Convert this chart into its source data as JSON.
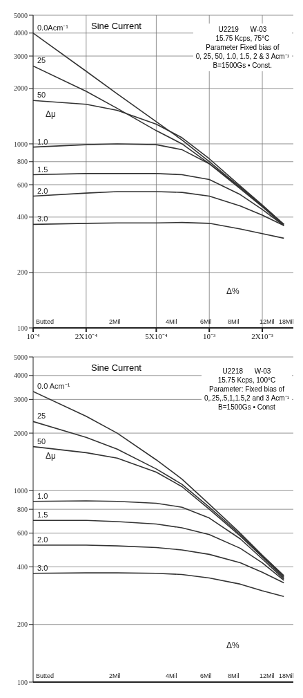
{
  "chart_data": [
    {
      "type": "line",
      "title": "Sine Current",
      "x": [
        0.0001,
        0.0002,
        0.0003,
        0.0005,
        0.0007,
        0.001,
        0.0015,
        0.002,
        0.00265
      ],
      "series": [
        {
          "name": "0.0Acm⁻¹",
          "color": "#333333",
          "values": [
            4000,
            2480,
            1870,
            1320,
            1050,
            800,
            580,
            460,
            365
          ]
        },
        {
          "name": "25",
          "color": "#333333",
          "values": [
            2650,
            1930,
            1560,
            1180,
            1000,
            780,
            570,
            455,
            360
          ]
        },
        {
          "name": "50",
          "color": "#333333",
          "values": [
            1720,
            1640,
            1520,
            1280,
            1080,
            830,
            590,
            465,
            365
          ]
        },
        {
          "name": "1.0",
          "color": "#333333",
          "values": [
            960,
            990,
            1000,
            990,
            930,
            780,
            580,
            460,
            365
          ]
        },
        {
          "name": "1.5",
          "color": "#333333",
          "values": [
            680,
            690,
            690,
            690,
            680,
            640,
            530,
            440,
            360
          ]
        },
        {
          "name": "2.0",
          "color": "#333333",
          "values": [
            520,
            540,
            550,
            550,
            545,
            520,
            460,
            410,
            360
          ]
        },
        {
          "name": "3.0",
          "color": "#333333",
          "values": [
            365,
            370,
            372,
            372,
            374,
            370,
            345,
            325,
            307
          ]
        }
      ],
      "log": "xy",
      "xlim": [
        0.0001,
        0.003
      ],
      "ylim": [
        100,
        5000
      ],
      "xticks": [
        {
          "value": 0.0001,
          "label": "10⁻⁴"
        },
        {
          "value": 0.0002,
          "label": "2X10⁻⁴"
        },
        {
          "value": 0.0005,
          "label": "5X10⁻⁴"
        },
        {
          "value": 0.001,
          "label": "10⁻³"
        },
        {
          "value": 0.002,
          "label": "2X10⁻³"
        }
      ],
      "yticks": [
        100,
        200,
        400,
        600,
        800,
        1000,
        2000,
        3000,
        4000,
        5000
      ],
      "grid": true,
      "legend": false,
      "marker": "none",
      "line_style": "solid",
      "annotations": [
        "U2219      W-03",
        "15.75 Kcps, 75°C",
        "Parameter Fixed bias of",
        "0, 25, 50, 1.0, 1.5, 2 & 3 Acm⁻¹",
        "B=1500Gs • Const.",
        "Δμ",
        "Butted",
        "2Mil",
        "4Mil",
        "6Mil",
        "8Mil",
        "12Mil",
        "18Mil",
        "Δ%"
      ]
    },
    {
      "type": "line",
      "title": "Sine Current",
      "x": [
        0.0001,
        0.0002,
        0.0003,
        0.0005,
        0.0007,
        0.001,
        0.0015,
        0.002,
        0.00265
      ],
      "series": [
        {
          "name": "0.0 Acm⁻¹",
          "color": "#333333",
          "values": [
            3300,
            2450,
            2000,
            1450,
            1150,
            850,
            600,
            460,
            360
          ]
        },
        {
          "name": "25",
          "color": "#333333",
          "values": [
            2300,
            1900,
            1650,
            1300,
            1080,
            820,
            590,
            455,
            355
          ]
        },
        {
          "name": "50",
          "color": "#333333",
          "values": [
            1700,
            1580,
            1480,
            1250,
            1050,
            800,
            580,
            450,
            350
          ]
        },
        {
          "name": "1.0",
          "color": "#333333",
          "values": [
            880,
            885,
            880,
            860,
            820,
            720,
            560,
            440,
            345
          ]
        },
        {
          "name": "1.5",
          "color": "#333333",
          "values": [
            700,
            700,
            690,
            670,
            640,
            590,
            500,
            420,
            340
          ]
        },
        {
          "name": "2.0",
          "color": "#333333",
          "values": [
            520,
            520,
            515,
            505,
            490,
            465,
            420,
            375,
            330
          ]
        },
        {
          "name": "3.0",
          "color": "#333333",
          "values": [
            370,
            372,
            372,
            370,
            365,
            350,
            325,
            300,
            280
          ]
        }
      ],
      "log": "xy",
      "xlim": [
        0.0001,
        0.003
      ],
      "ylim": [
        100,
        5000
      ],
      "xticks": [
        {
          "value": 0.0001,
          "label": null
        },
        {
          "value": 0.0002,
          "label": null
        },
        {
          "value": 0.0005,
          "label": null
        },
        {
          "value": 0.001,
          "label": null
        },
        {
          "value": 0.002,
          "label": null
        }
      ],
      "yticks": [
        100,
        200,
        400,
        600,
        800,
        1000,
        2000,
        3000,
        4000,
        5000
      ],
      "grid": true,
      "legend": false,
      "marker": "none",
      "line_style": "solid",
      "tick_labels": "y",
      "annotations": [
        "U2218      W-03",
        "15.75 Kcps, 100°C",
        "Parameter: Fixed bias of",
        "0,.25,.5,1,1.5,2 and 3 Acm⁻¹",
        "B=1500Gs • Const",
        "Δμ",
        "Butted",
        "2Mil",
        "4Mil",
        "6Mil",
        "8Mil",
        "12Mil",
        "18Mil",
        "Δ%"
      ]
    }
  ]
}
